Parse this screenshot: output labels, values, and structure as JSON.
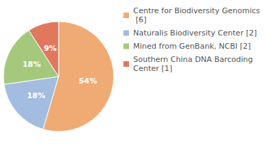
{
  "chart_data": {
    "type": "pie",
    "categories": [
      "Centre for Biodiversity Genomics [6]",
      "Naturalis Biodiversity Center [2]",
      "Mined from GenBank, NCBI [2]",
      "Southern China DNA Barcoding Center [1]"
    ],
    "values": [
      54,
      18,
      18,
      9
    ],
    "value_labels": [
      "54%",
      "18%",
      "18%",
      "9%"
    ],
    "colors": [
      "#f0ab74",
      "#a3bde0",
      "#a4c97c",
      "#e0785e"
    ],
    "data_labels": true,
    "legend": "top-right"
  }
}
